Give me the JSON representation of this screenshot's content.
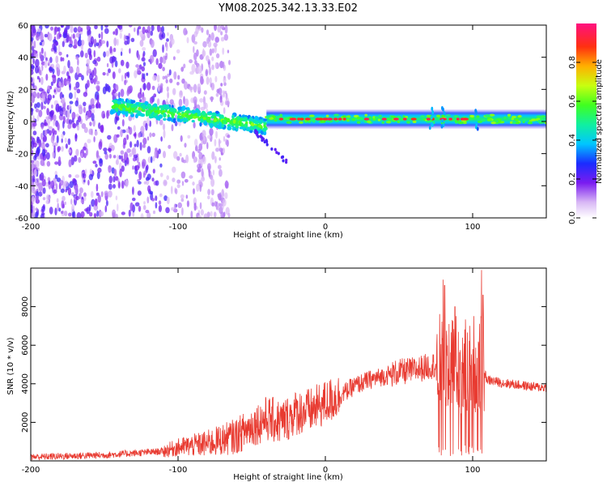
{
  "title": "YM08.2025.342.13.33.E02",
  "colors": {
    "snr_line": "#e83a30",
    "axis": "#000000",
    "background": "#ffffff"
  },
  "chart_data": [
    {
      "type": "heatmap",
      "name": "spectrogram",
      "title": "YM08.2025.342.13.33.E02",
      "xlabel": "Height of straight line (km)",
      "ylabel": "Frequency (Hz)",
      "xlim": [
        -200,
        150
      ],
      "ylim": [
        -60,
        60
      ],
      "xticks": [
        "-200",
        "-100",
        "0",
        "100"
      ],
      "yticks": [
        "-60",
        "-40",
        "-20",
        "0",
        "20",
        "40",
        "60"
      ],
      "colorbar": {
        "label": "Normalized spectral amplitude",
        "range": [
          0,
          1
        ],
        "ticks": [
          "0.0",
          "0.2",
          "0.4",
          "0.6",
          "0.8"
        ]
      },
      "features": [
        {
          "x_range": [
            -200,
            -70
          ],
          "description": "scattered low-amplitude blobs (purple)",
          "amplitude": 0.1
        },
        {
          "x_range": [
            -145,
            -40
          ],
          "freq_center_start": 10,
          "freq_center_end": -3,
          "amplitude": 0.35
        },
        {
          "x_range": [
            -40,
            150
          ],
          "freq_center": 1.5,
          "bandwidth_hz": 8,
          "amplitude": 0.45
        },
        {
          "x_range": [
            -20,
            100
          ],
          "description": "red peaks along center line",
          "amplitude": 0.95
        }
      ]
    },
    {
      "type": "line",
      "name": "snr",
      "xlabel": "Height of straight line (km)",
      "ylabel": "SNR (10 * v/v)",
      "xlim": [
        -200,
        150
      ],
      "ylim": [
        0,
        10000
      ],
      "xticks": [
        "-200",
        "-100",
        "0",
        "100"
      ],
      "yticks": [
        "2000",
        "4000",
        "6000",
        "8000"
      ],
      "series": [
        {
          "name": "SNR",
          "x": [
            -200,
            -150,
            -110,
            -100,
            -80,
            -60,
            -50,
            -40,
            -30,
            -20,
            -10,
            0,
            10,
            20,
            30,
            40,
            50,
            60,
            70,
            75,
            80,
            85,
            90,
            95,
            100,
            105,
            110,
            120,
            130,
            140,
            150
          ],
          "y": [
            200,
            300,
            500,
            700,
            900,
            1300,
            1800,
            2200,
            2000,
            2500,
            2600,
            3000,
            3400,
            3900,
            4200,
            4400,
            4600,
            4700,
            4900,
            5000,
            5200,
            5300,
            5000,
            4900,
            5100,
            5100,
            4200,
            4050,
            3950,
            3850,
            3800
          ]
        }
      ],
      "spikes": [
        {
          "x": 80,
          "y": 9400
        },
        {
          "x": 81,
          "y": 9100
        },
        {
          "x": 84,
          "y": 7100
        },
        {
          "x": 88,
          "y": 8000
        },
        {
          "x": 106,
          "y": 9900
        },
        {
          "x": 107,
          "y": 8600
        }
      ]
    }
  ]
}
